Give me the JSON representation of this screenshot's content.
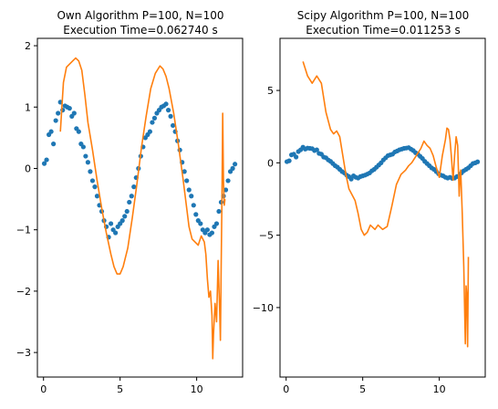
{
  "chart_data": [
    {
      "type": "scatter+line",
      "title_line1": "Own Algorithm P=100, N=100",
      "title_line2": "Execution Time=0.062740 s",
      "xlim": [
        -0.4,
        13.0
      ],
      "ylim": [
        -3.4,
        2.12
      ],
      "xticks": [
        0,
        5,
        10
      ],
      "yticks": [
        -3,
        -2,
        -1,
        0,
        1,
        2
      ],
      "series": [
        {
          "kind": "scatter",
          "color": "#1f77b4",
          "x": [
            0.05,
            0.2,
            0.35,
            0.5,
            0.65,
            0.8,
            0.95,
            1.1,
            1.25,
            1.4,
            1.55,
            1.7,
            1.85,
            2.0,
            2.15,
            2.3,
            2.45,
            2.6,
            2.75,
            2.9,
            3.05,
            3.2,
            3.35,
            3.5,
            3.65,
            3.8,
            3.95,
            4.1,
            4.25,
            4.4,
            4.55,
            4.7,
            4.85,
            5.0,
            5.15,
            5.3,
            5.45,
            5.6,
            5.75,
            5.9,
            6.05,
            6.2,
            6.35,
            6.5,
            6.65,
            6.8,
            6.95,
            7.1,
            7.25,
            7.4,
            7.55,
            7.7,
            7.85,
            8.0,
            8.15,
            8.3,
            8.45,
            8.6,
            8.75,
            8.9,
            9.05,
            9.2,
            9.35,
            9.5,
            9.65,
            9.8,
            9.95,
            10.1,
            10.25,
            10.4,
            10.55,
            10.7,
            10.85,
            11.0,
            11.15,
            11.3,
            11.45,
            11.6,
            11.75,
            11.9,
            12.05,
            12.2,
            12.35,
            12.5
          ],
          "y": [
            0.08,
            0.14,
            0.55,
            0.6,
            0.4,
            0.78,
            0.9,
            1.08,
            0.95,
            1.02,
            1.0,
            0.98,
            0.85,
            0.9,
            0.65,
            0.6,
            0.4,
            0.35,
            0.2,
            0.1,
            -0.05,
            -0.2,
            -0.3,
            -0.45,
            -0.6,
            -0.7,
            -0.85,
            -0.95,
            -1.12,
            -0.9,
            -1.0,
            -1.05,
            -0.95,
            -0.9,
            -0.85,
            -0.78,
            -0.7,
            -0.55,
            -0.45,
            -0.3,
            -0.15,
            0.0,
            0.2,
            0.35,
            0.5,
            0.55,
            0.6,
            0.75,
            0.82,
            0.9,
            0.95,
            1.0,
            1.02,
            1.05,
            0.95,
            0.85,
            0.7,
            0.6,
            0.45,
            0.3,
            0.1,
            -0.05,
            -0.2,
            -0.35,
            -0.45,
            -0.6,
            -0.75,
            -0.85,
            -0.9,
            -1.0,
            -1.05,
            -1.0,
            -1.08,
            -1.05,
            -0.95,
            -0.9,
            -0.7,
            -0.55,
            -0.45,
            -0.35,
            -0.2,
            -0.05,
            0.0,
            0.07
          ]
        },
        {
          "kind": "line",
          "color": "#ff7f0e",
          "x": [
            1.1,
            1.3,
            1.5,
            1.7,
            1.9,
            2.1,
            2.3,
            2.5,
            2.7,
            2.9,
            3.2,
            3.5,
            3.8,
            4.1,
            4.4,
            4.6,
            4.8,
            5.0,
            5.2,
            5.5,
            5.8,
            6.1,
            6.4,
            6.7,
            7.0,
            7.3,
            7.6,
            7.8,
            8.0,
            8.2,
            8.5,
            8.8,
            9.1,
            9.3,
            9.5,
            9.7,
            9.9,
            10.1,
            10.3,
            10.5,
            10.6,
            10.7,
            10.8,
            10.9,
            11.0,
            11.05,
            11.1,
            11.2,
            11.3,
            11.4,
            11.5,
            11.55,
            11.6,
            11.65,
            11.7,
            11.75,
            11.8,
            11.85
          ],
          "y": [
            0.6,
            1.4,
            1.65,
            1.7,
            1.75,
            1.8,
            1.75,
            1.6,
            1.2,
            0.75,
            0.3,
            -0.2,
            -0.65,
            -1.05,
            -1.4,
            -1.6,
            -1.72,
            -1.72,
            -1.6,
            -1.3,
            -0.8,
            -0.25,
            0.35,
            0.85,
            1.3,
            1.55,
            1.67,
            1.62,
            1.5,
            1.3,
            0.9,
            0.4,
            -0.15,
            -0.55,
            -0.95,
            -1.15,
            -1.2,
            -1.25,
            -1.1,
            -1.2,
            -1.4,
            -1.8,
            -2.1,
            -2.0,
            -2.4,
            -3.1,
            -2.7,
            -2.2,
            -2.5,
            -1.5,
            -2.3,
            -2.8,
            -1.6,
            -0.5,
            0.9,
            -0.2,
            -0.6,
            -0.5
          ]
        }
      ]
    },
    {
      "type": "scatter+line",
      "title_line1": "Scipy Algorithm P=100, N=100",
      "title_line2": "Execution Time=0.011253 s",
      "xlim": [
        -0.4,
        13.0
      ],
      "ylim": [
        -14.8,
        8.6
      ],
      "xticks": [
        0,
        5,
        10
      ],
      "yticks": [
        -10,
        -5,
        0,
        5
      ],
      "series": [
        {
          "kind": "scatter",
          "color": "#1f77b4",
          "x": [
            0.05,
            0.2,
            0.35,
            0.5,
            0.65,
            0.8,
            0.95,
            1.1,
            1.25,
            1.4,
            1.55,
            1.7,
            1.85,
            2.0,
            2.15,
            2.3,
            2.45,
            2.6,
            2.75,
            2.9,
            3.05,
            3.2,
            3.35,
            3.5,
            3.65,
            3.8,
            3.95,
            4.1,
            4.25,
            4.4,
            4.55,
            4.7,
            4.85,
            5.0,
            5.15,
            5.3,
            5.45,
            5.6,
            5.75,
            5.9,
            6.05,
            6.2,
            6.35,
            6.5,
            6.65,
            6.8,
            6.95,
            7.1,
            7.25,
            7.4,
            7.55,
            7.7,
            7.85,
            8.0,
            8.15,
            8.3,
            8.45,
            8.6,
            8.75,
            8.9,
            9.05,
            9.2,
            9.35,
            9.5,
            9.65,
            9.8,
            9.95,
            10.1,
            10.25,
            10.4,
            10.55,
            10.7,
            10.85,
            11.0,
            11.15,
            11.3,
            11.45,
            11.6,
            11.75,
            11.9,
            12.05,
            12.2,
            12.35,
            12.5
          ],
          "y": [
            0.08,
            0.14,
            0.55,
            0.6,
            0.4,
            0.78,
            0.9,
            1.08,
            0.95,
            1.02,
            1.0,
            0.98,
            0.85,
            0.9,
            0.65,
            0.6,
            0.4,
            0.35,
            0.2,
            0.1,
            -0.05,
            -0.2,
            -0.3,
            -0.45,
            -0.6,
            -0.7,
            -0.85,
            -0.95,
            -1.12,
            -0.9,
            -1.0,
            -1.05,
            -0.95,
            -0.9,
            -0.85,
            -0.78,
            -0.7,
            -0.55,
            -0.45,
            -0.3,
            -0.15,
            0.0,
            0.2,
            0.35,
            0.5,
            0.55,
            0.6,
            0.75,
            0.82,
            0.9,
            0.95,
            1.0,
            1.02,
            1.05,
            0.95,
            0.85,
            0.7,
            0.6,
            0.45,
            0.3,
            0.1,
            -0.05,
            -0.2,
            -0.35,
            -0.45,
            -0.6,
            -0.75,
            -0.85,
            -0.9,
            -1.0,
            -1.05,
            -1.0,
            -1.08,
            -1.05,
            -0.95,
            -0.9,
            -0.7,
            -0.55,
            -0.45,
            -0.35,
            -0.2,
            -0.05,
            0.0,
            0.07
          ]
        },
        {
          "kind": "line",
          "color": "#ff7f0e",
          "x": [
            1.1,
            1.4,
            1.7,
            2.0,
            2.3,
            2.6,
            2.9,
            3.1,
            3.3,
            3.5,
            3.7,
            3.9,
            4.1,
            4.3,
            4.5,
            4.7,
            4.9,
            5.1,
            5.3,
            5.5,
            5.8,
            6.0,
            6.3,
            6.6,
            6.9,
            7.2,
            7.5,
            7.8,
            8.0,
            8.2,
            8.5,
            8.8,
            9.0,
            9.2,
            9.4,
            9.6,
            9.8,
            10.0,
            10.2,
            10.4,
            10.5,
            10.6,
            10.7,
            10.8,
            10.9,
            11.0,
            11.1,
            11.2,
            11.3,
            11.35,
            11.4,
            11.5,
            11.6,
            11.7,
            11.75,
            11.8,
            11.85,
            11.9
          ],
          "y": [
            7.0,
            6.0,
            5.5,
            6.0,
            5.5,
            3.5,
            2.3,
            2.0,
            2.2,
            1.8,
            0.5,
            -0.8,
            -1.8,
            -2.2,
            -2.6,
            -3.5,
            -4.6,
            -5.0,
            -4.8,
            -4.3,
            -4.6,
            -4.3,
            -4.6,
            -4.4,
            -3.0,
            -1.5,
            -0.8,
            -0.5,
            -0.2,
            0.0,
            0.5,
            1.0,
            1.5,
            1.2,
            1.0,
            0.5,
            -0.3,
            -1.0,
            0.5,
            1.6,
            2.4,
            2.3,
            1.6,
            0.3,
            -1.2,
            0.5,
            1.8,
            1.2,
            -2.3,
            -1.2,
            -0.5,
            -3.5,
            -7.2,
            -12.5,
            -8.5,
            -9.2,
            -12.7,
            -6.5
          ]
        }
      ]
    }
  ]
}
